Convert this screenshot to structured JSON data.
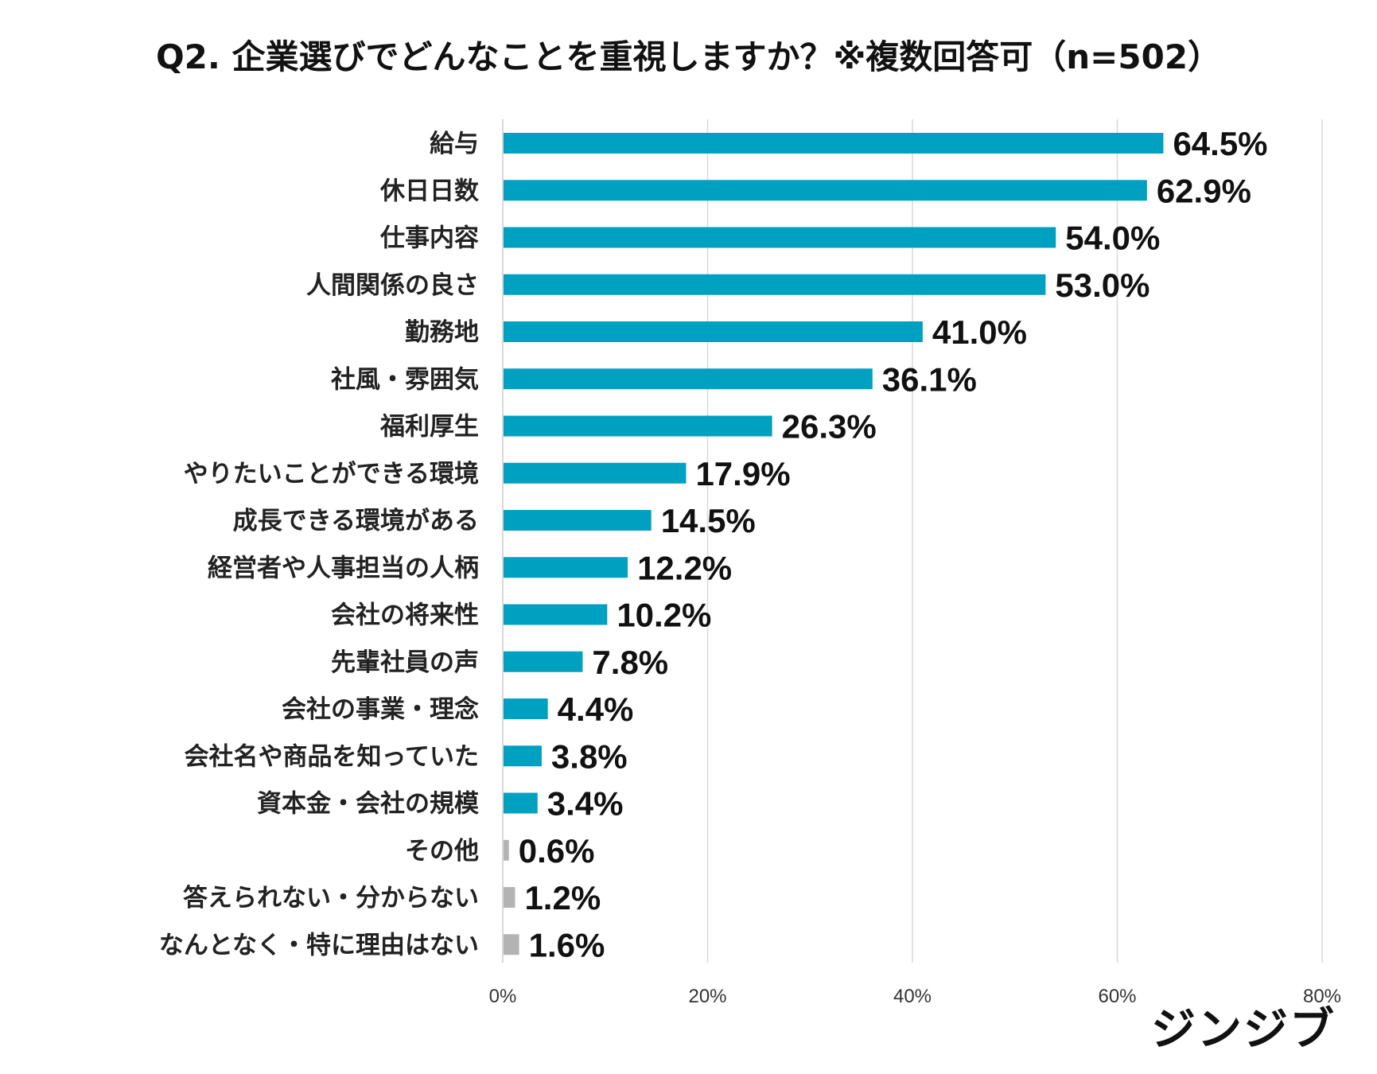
{
  "chart_data": {
    "type": "bar",
    "orientation": "horizontal",
    "title": "Q2.  企業選びでどんなことを重視しますか？※複数回答可（n=502）",
    "categories": [
      "給与",
      "休日日数",
      "仕事内容",
      "人間関係の良さ",
      "勤務地",
      "社風・雰囲気",
      "福利厚生",
      "やりたいことができる環境",
      "成長できる環境がある",
      "経営者や人事担当の人柄",
      "会社の将来性",
      "先輩社員の声",
      "会社の事業・理念",
      "会社名や商品を知っていた",
      "資本金・会社の規模",
      "その他",
      "答えられない・分からない",
      "なんとなく・特に理由はない"
    ],
    "values": [
      64.5,
      62.9,
      54.0,
      53.0,
      41.0,
      36.1,
      26.3,
      17.9,
      14.5,
      12.2,
      10.2,
      7.8,
      4.4,
      3.8,
      3.4,
      0.6,
      1.2,
      1.6
    ],
    "value_labels": [
      "64.5%",
      "62.9%",
      "54.0%",
      "53.0%",
      "41.0%",
      "36.1%",
      "26.3%",
      "17.9%",
      "14.5%",
      "12.2%",
      "10.2%",
      "7.8%",
      "4.4%",
      "3.8%",
      "3.4%",
      "0.6%",
      "1.2%",
      "1.6%"
    ],
    "bar_colors": [
      "#00a0c0",
      "#00a0c0",
      "#00a0c0",
      "#00a0c0",
      "#00a0c0",
      "#00a0c0",
      "#00a0c0",
      "#00a0c0",
      "#00a0c0",
      "#00a0c0",
      "#00a0c0",
      "#00a0c0",
      "#00a0c0",
      "#00a0c0",
      "#00a0c0",
      "#b3b3b3",
      "#b3b3b3",
      "#b3b3b3"
    ],
    "x_ticks": [
      "0%",
      "20%",
      "40%",
      "60%",
      "80%"
    ],
    "x_tick_values": [
      0,
      20,
      40,
      60,
      80
    ],
    "xlim": [
      0,
      80
    ],
    "xlabel": "",
    "ylabel": "",
    "grid": "vertical",
    "legend": "none"
  },
  "brand": {
    "logo_text": "ジンジブ"
  },
  "colors": {
    "primary_bar": "#00a0c0",
    "other_bar": "#b3b3b3",
    "grid": "#d9d9d9",
    "text": "#111111"
  }
}
